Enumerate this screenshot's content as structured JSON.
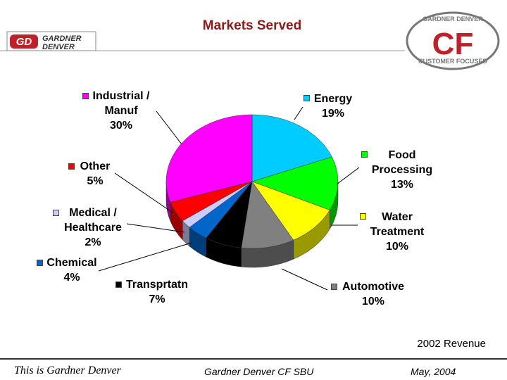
{
  "title": "Markets Served",
  "logos": {
    "left": {
      "mark": "GD",
      "name": [
        "GARDNER",
        "DENVER"
      ]
    },
    "right": {
      "mark": "CF",
      "top": "GARDNER DENVER",
      "bottom": "CUSTOMER FOCUSED"
    }
  },
  "chart_data": {
    "type": "pie",
    "categories": [
      "Energy",
      "Food Processing",
      "Water Treatment",
      "Automotive",
      "Transprtatn",
      "Chemical",
      "Medical / Healthcare",
      "Other",
      "Industrial / Manuf"
    ],
    "values": [
      19,
      13,
      10,
      10,
      7,
      4,
      2,
      5,
      30
    ],
    "value_labels": [
      "19%",
      "13%",
      "10%",
      "10%",
      "7%",
      "4%",
      "2%",
      "5%",
      "30%"
    ],
    "colors": [
      "#00ccff",
      "#00ff00",
      "#ffff00",
      "#808080",
      "#000000",
      "#0066cc",
      "#ccccff",
      "#ff0000",
      "#ff00ff"
    ],
    "note": "2002 Revenue"
  },
  "footer": {
    "left": "This is Gardner Denver",
    "center": "Gardner Denver CF SBU",
    "right": "May, 2004"
  }
}
